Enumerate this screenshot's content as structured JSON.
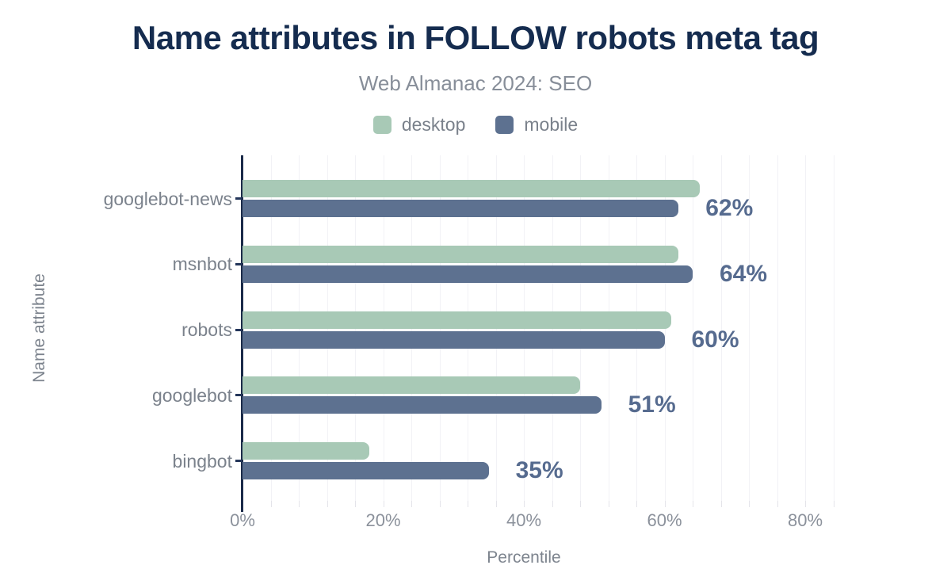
{
  "title": "Name attributes in FOLLOW robots meta tag",
  "subtitle": "Web Almanac 2024: SEO",
  "legend": {
    "items": [
      {
        "label": "desktop",
        "color": "#a8c9b6"
      },
      {
        "label": "mobile",
        "color": "#5d7190"
      }
    ]
  },
  "chart_data": {
    "type": "bar",
    "orientation": "horizontal",
    "title": "Name attributes in FOLLOW robots meta tag",
    "subtitle": "Web Almanac 2024: SEO",
    "categories": [
      "googlebot-news",
      "msnbot",
      "robots",
      "googlebot",
      "bingbot"
    ],
    "series": [
      {
        "name": "desktop",
        "color": "#a8c9b6",
        "values": [
          65,
          62,
          61,
          48,
          18
        ]
      },
      {
        "name": "mobile",
        "color": "#5d7190",
        "values": [
          62,
          64,
          60,
          51,
          35
        ]
      }
    ],
    "value_labels": {
      "series": "mobile",
      "texts": [
        "62%",
        "64%",
        "60%",
        "51%",
        "35%"
      ]
    },
    "xlabel": "Percentile",
    "ylabel": "Name attribute",
    "x_ticks": [
      {
        "label": "0%",
        "value": 0
      },
      {
        "label": "20%",
        "value": 20
      },
      {
        "label": "40%",
        "value": 40
      },
      {
        "label": "60%",
        "value": 60
      },
      {
        "label": "80%",
        "value": 80
      }
    ],
    "xlim": [
      0,
      84
    ],
    "grid": {
      "show": true,
      "interval_pct": 4
    },
    "legend_position": "top-center"
  },
  "colors": {
    "background": "#ffffff",
    "title": "#152c4f",
    "subtitle": "#878e99",
    "axis": "#1b2b49",
    "category_label": "#7b828c",
    "tick_label": "#8b919b",
    "value_label": "#566b8f",
    "gridline": "#f2f2f6",
    "desktop": "#a8c9b6",
    "mobile": "#5d7190"
  }
}
